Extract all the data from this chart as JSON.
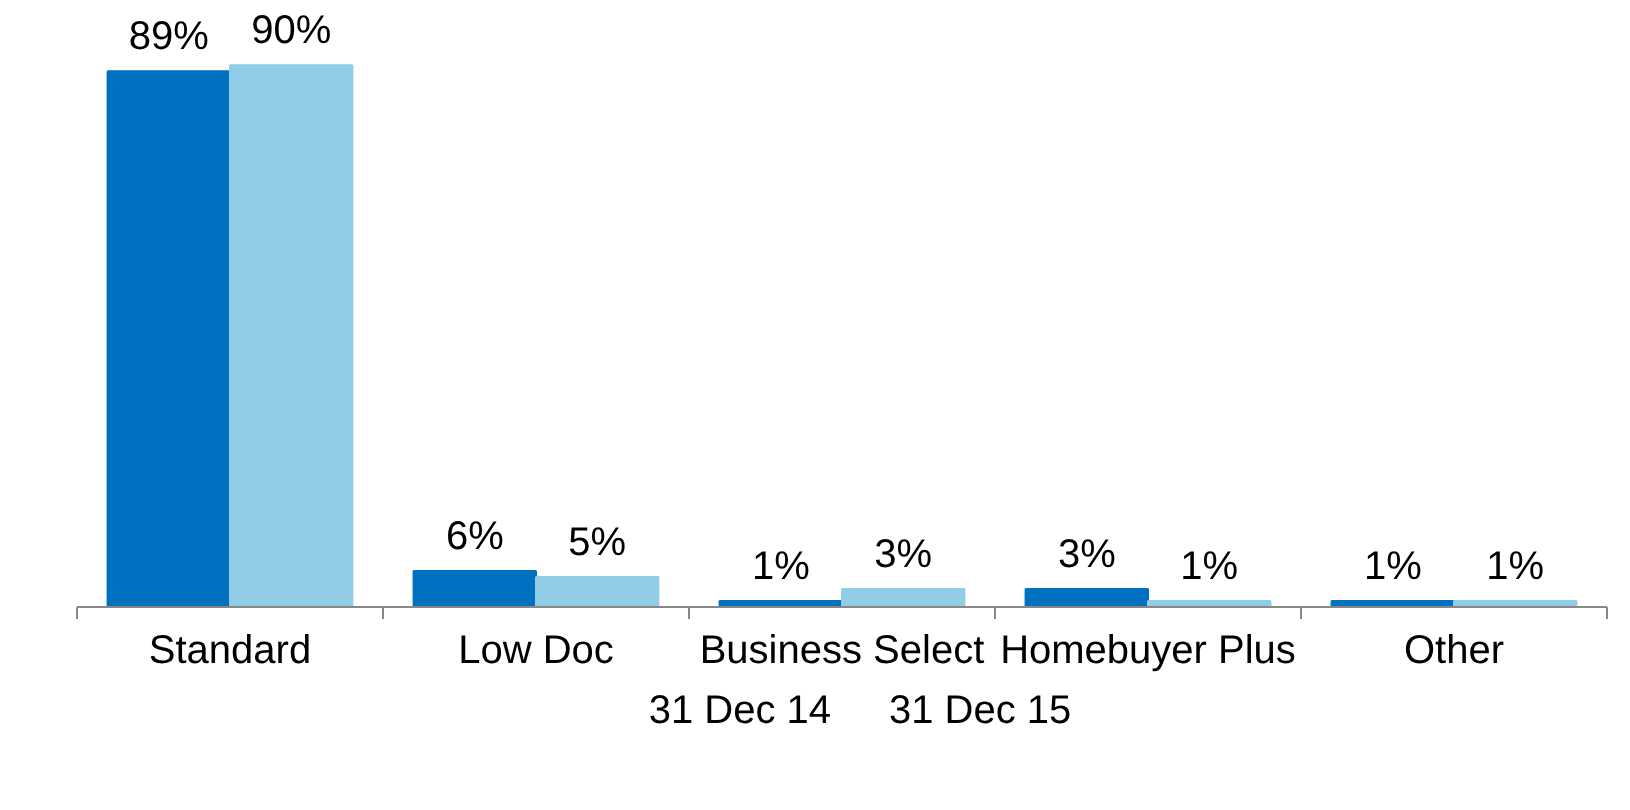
{
  "chart_data": {
    "type": "bar",
    "categories": [
      "Standard",
      "Low Doc",
      "Business Select",
      "Homebuyer Plus",
      "Other"
    ],
    "series": [
      {
        "name": "31 Dec 14",
        "color": "#0070c0",
        "values": [
          89,
          6,
          1,
          3,
          1
        ],
        "value_labels": [
          "89%",
          "6%",
          "1%",
          "3%",
          "1%"
        ]
      },
      {
        "name": "31 Dec 15",
        "color": "#92cde8",
        "values": [
          90,
          5,
          3,
          1,
          1
        ],
        "value_labels": [
          "90%",
          "5%",
          "3%",
          "1%",
          "1%"
        ]
      }
    ],
    "legend": "bottom"
  }
}
